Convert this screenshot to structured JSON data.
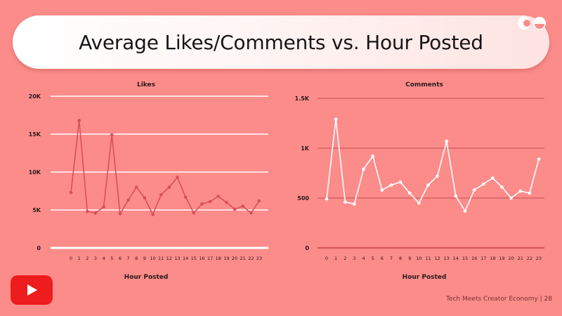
{
  "slide": {
    "title": "Average Likes/Comments vs. Hour Posted",
    "footer": "Tech Meets Creator Economy | 28",
    "background": "#fb8c8a",
    "icons": {
      "brand_logo": "creator-logo-icon",
      "youtube_logo": "youtube-play-icon"
    }
  },
  "chart_data": [
    {
      "type": "line",
      "title": "Likes",
      "xlabel": "Hour Posted",
      "ylabel": "",
      "x": [
        0,
        1,
        2,
        3,
        4,
        5,
        6,
        7,
        8,
        9,
        10,
        11,
        12,
        13,
        14,
        15,
        16,
        17,
        18,
        19,
        20,
        21,
        22,
        23
      ],
      "xticks": [
        "0",
        "1",
        "2",
        "3",
        "4",
        "5",
        "6",
        "7",
        "8",
        "9",
        "10",
        "11",
        "12",
        "13",
        "14",
        "15",
        "16",
        "17",
        "18",
        "19",
        "20",
        "21",
        "22",
        "23"
      ],
      "yticks": [
        {
          "value": 0,
          "label": "0"
        },
        {
          "value": 5000,
          "label": "5K"
        },
        {
          "value": 10000,
          "label": "10K"
        },
        {
          "value": 15000,
          "label": "15K"
        },
        {
          "value": 20000,
          "label": "20K"
        }
      ],
      "ylim": [
        0,
        20000
      ],
      "grid": true,
      "line_color": "#d8505a",
      "grid_color": "#ffffff",
      "series": [
        {
          "values": [
            7300,
            16800,
            4800,
            4600,
            5400,
            14900,
            4500,
            6300,
            8000,
            6600,
            4400,
            7000,
            8000,
            9300,
            6700,
            4600,
            5800,
            6100,
            6800,
            6000,
            5100,
            5500,
            4600,
            6200
          ]
        }
      ]
    },
    {
      "type": "line",
      "title": "Comments",
      "xlabel": "Hour Posted",
      "ylabel": "",
      "x": [
        0,
        1,
        2,
        3,
        4,
        5,
        6,
        7,
        8,
        9,
        10,
        11,
        12,
        13,
        14,
        15,
        16,
        17,
        18,
        19,
        20,
        21,
        22,
        23
      ],
      "xticks": [
        "0",
        "1",
        "2",
        "3",
        "4",
        "5",
        "6",
        "7",
        "8",
        "9",
        "10",
        "11",
        "12",
        "13",
        "14",
        "15",
        "16",
        "17",
        "18",
        "19",
        "20",
        "21",
        "22",
        "23"
      ],
      "yticks": [
        {
          "value": 0,
          "label": "0"
        },
        {
          "value": 500,
          "label": "500"
        },
        {
          "value": 1000,
          "label": "1K"
        },
        {
          "value": 1500,
          "label": "1.5K"
        }
      ],
      "ylim": [
        0,
        1500
      ],
      "grid": true,
      "line_color": "#ffffff",
      "grid_color": "#d45a5e",
      "series": [
        {
          "values": [
            490,
            1290,
            460,
            440,
            790,
            920,
            580,
            630,
            660,
            550,
            450,
            630,
            720,
            1070,
            520,
            370,
            580,
            640,
            700,
            610,
            500,
            570,
            550,
            890
          ]
        }
      ]
    }
  ]
}
